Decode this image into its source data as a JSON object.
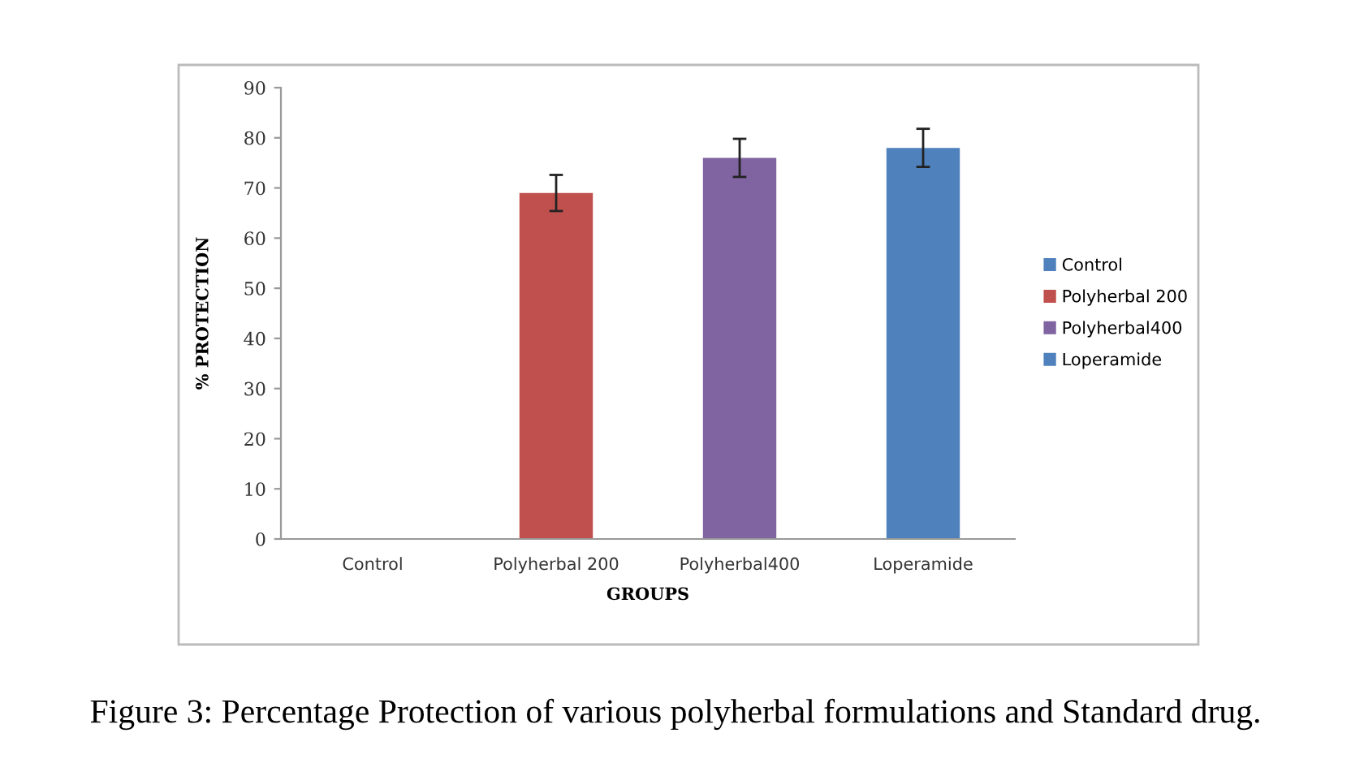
{
  "chart_data": {
    "type": "bar",
    "title": "Figure 3: Percentage Protection of various polyherbal formulations and Standard drug.",
    "xlabel": "GROUPS",
    "ylabel": "% PROTECTION",
    "categories": [
      "Control",
      "Polyherbal 200",
      "Polyherbal400",
      "Loperamide"
    ],
    "series": [
      {
        "name": "Control",
        "color": "#4f81bd",
        "values": [
          0,
          null,
          null,
          null
        ],
        "errors": [
          null,
          null,
          null,
          null
        ]
      },
      {
        "name": "Polyherbal 200",
        "color": "#c0504d",
        "values": [
          null,
          69,
          null,
          null
        ],
        "errors": [
          null,
          3.6,
          null,
          null
        ]
      },
      {
        "name": "Polyherbal400",
        "color": "#8064a2",
        "values": [
          null,
          null,
          76,
          null
        ],
        "errors": [
          null,
          null,
          3.8,
          null
        ]
      },
      {
        "name": "Loperamide",
        "color": "#4f81bd",
        "values": [
          null,
          null,
          null,
          78
        ],
        "errors": [
          null,
          null,
          null,
          3.8
        ]
      }
    ],
    "ylim": [
      0,
      90
    ],
    "yticks": [
      0,
      10,
      20,
      30,
      40,
      50,
      60,
      70,
      80,
      90
    ],
    "grid": false,
    "legend": "right"
  }
}
